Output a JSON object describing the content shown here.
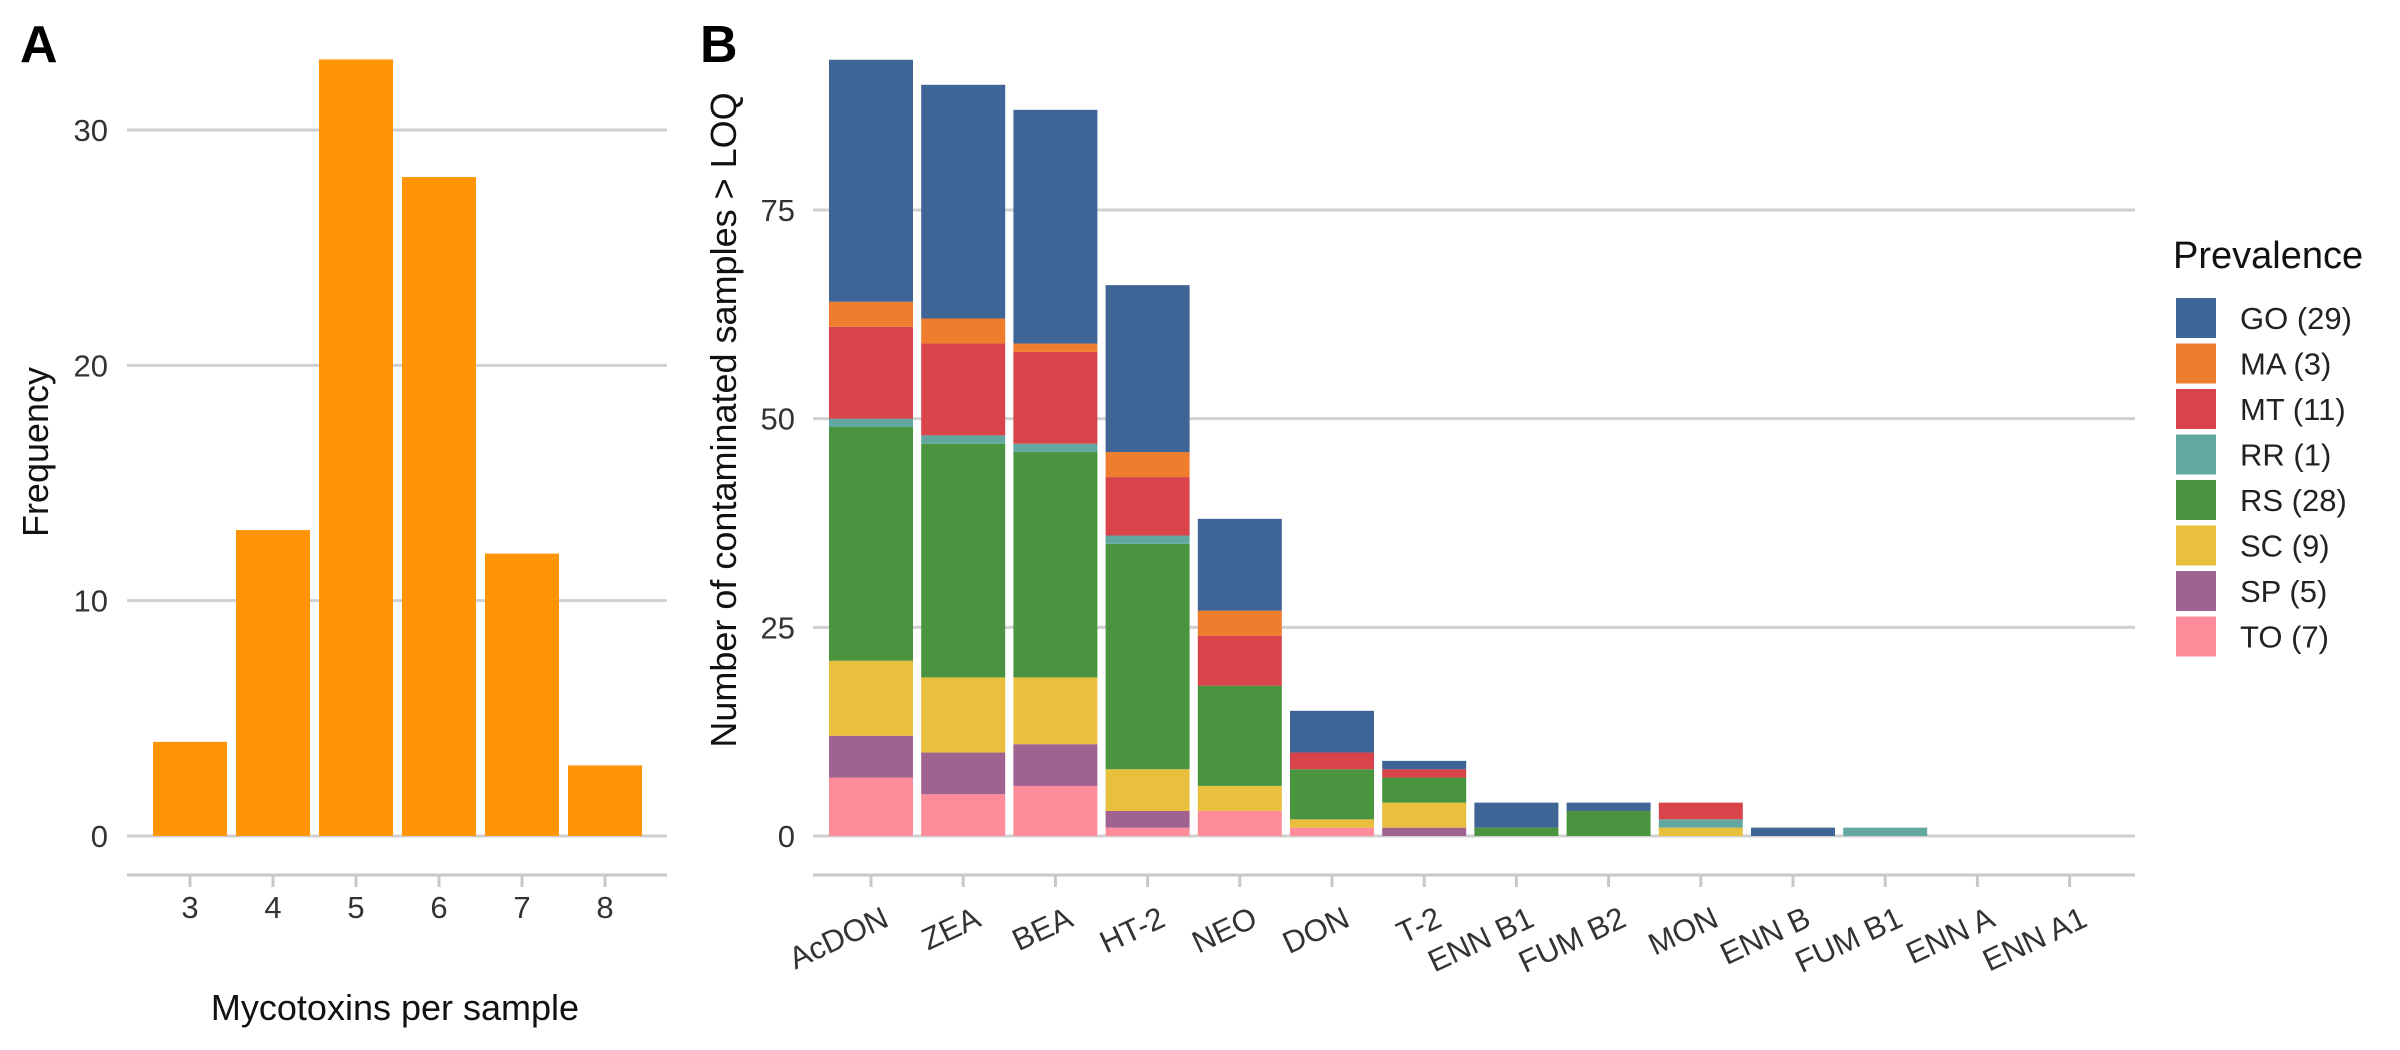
{
  "chart_data": [
    {
      "type": "bar",
      "panel": "A",
      "xlabel": "Mycotoxins per sample",
      "ylabel": "Frequency",
      "categories": [
        "3",
        "4",
        "5",
        "6",
        "7",
        "8"
      ],
      "values": [
        4,
        13,
        33,
        28,
        12,
        3
      ],
      "yticks": [
        0,
        10,
        20,
        30
      ],
      "ylim": [
        0,
        34
      ],
      "color": "#FF9505",
      "grid": true
    },
    {
      "type": "bar",
      "stacked": true,
      "panel": "B",
      "xlabel": "",
      "ylabel": "Number of contaminated samples > LOQ",
      "categories": [
        "AcDON",
        "ZEA",
        "BEA",
        "HT-2",
        "NEO",
        "DON",
        "T-2",
        "ENN B1",
        "FUM B2",
        "MON",
        "ENN B",
        "FUM B1",
        "ENN A",
        "ENN A1"
      ],
      "yticks": [
        0,
        25,
        50,
        75
      ],
      "ylim": [
        0,
        95
      ],
      "grid": true,
      "legend_title": "Prevalence",
      "legend_position": "right",
      "series": [
        {
          "name": "TO (7)",
          "color": "#FF8C9A",
          "values": [
            7,
            5,
            6,
            1,
            3,
            1,
            0,
            0,
            0,
            0,
            0,
            0,
            0,
            0
          ]
        },
        {
          "name": "SP (5)",
          "color": "#A0628F",
          "values": [
            5,
            5,
            5,
            2,
            0,
            0,
            1,
            0,
            0,
            0,
            0,
            0,
            0,
            0
          ]
        },
        {
          "name": "SC (9)",
          "color": "#E8C03E",
          "values": [
            9,
            9,
            8,
            5,
            3,
            1,
            3,
            0,
            0,
            1,
            0,
            0,
            0,
            0
          ]
        },
        {
          "name": "RS (28)",
          "color": "#4A943F",
          "values": [
            28,
            28,
            27,
            27,
            12,
            6,
            3,
            1,
            3,
            0,
            0,
            0,
            0,
            0
          ]
        },
        {
          "name": "RR (1)",
          "color": "#62A8A1",
          "values": [
            1,
            1,
            1,
            1,
            0,
            0,
            0,
            0,
            0,
            1,
            0,
            1,
            0,
            0
          ]
        },
        {
          "name": "MT (11)",
          "color": "#D9434A",
          "values": [
            11,
            11,
            11,
            7,
            6,
            2,
            1,
            0,
            0,
            2,
            0,
            0,
            0,
            0
          ]
        },
        {
          "name": "MA (3)",
          "color": "#EE7D2E",
          "values": [
            3,
            3,
            1,
            3,
            3,
            0,
            0,
            0,
            0,
            0,
            0,
            0,
            0,
            0
          ]
        },
        {
          "name": "GO (29)",
          "color": "#3F6597",
          "values": [
            29,
            28,
            28,
            20,
            11,
            5,
            1,
            3,
            1,
            0,
            1,
            0,
            0,
            0
          ]
        }
      ]
    }
  ]
}
